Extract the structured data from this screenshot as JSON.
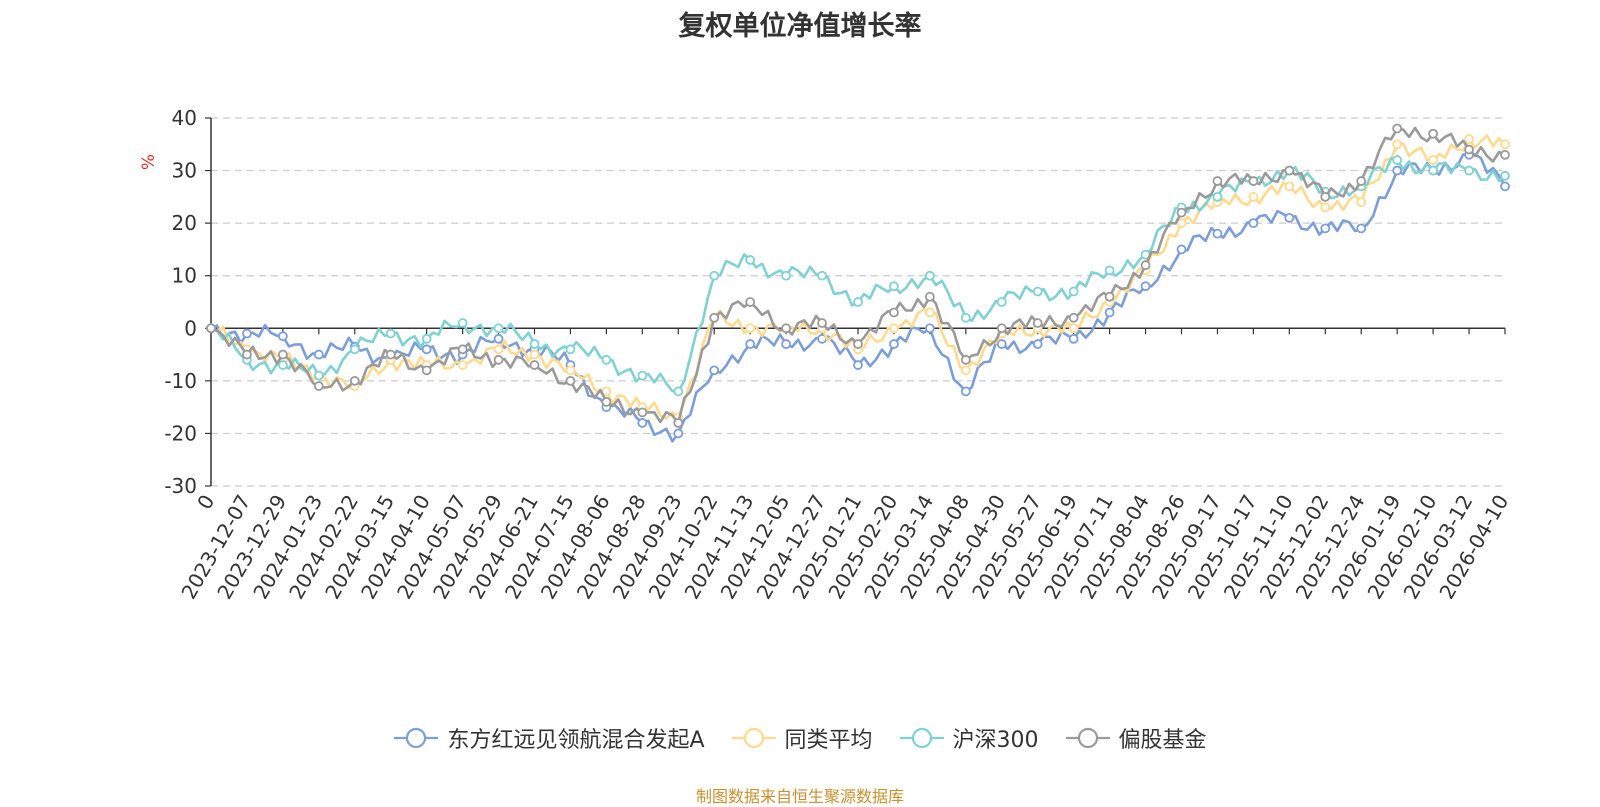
{
  "chart_data": {
    "type": "line",
    "title": "复权单位净值增长率",
    "ylabel": "%",
    "ylim": [
      -30,
      40
    ],
    "yticks": [
      -30,
      -20,
      -10,
      0,
      10,
      20,
      30,
      40
    ],
    "grid": true,
    "legend_position": "bottom",
    "xtick_labels": [
      "0",
      "2023-12-07",
      "2023-12-29",
      "2024-01-23",
      "2024-02-22",
      "2024-03-15",
      "2024-04-10",
      "2024-05-07",
      "2024-05-29",
      "2024-06-21",
      "2024-07-15",
      "2024-08-06",
      "2024-08-28",
      "2024-09-23",
      "2024-10-22",
      "2024-11-13",
      "2024-12-05",
      "2024-12-27",
      "2025-01-21",
      "2025-02-20",
      "2025-03-14",
      "2025-04-08",
      "2025-04-30",
      "2025-05-27",
      "2025-06-19",
      "2025-07-11",
      "2025-08-04",
      "2025-08-26",
      "2025-09-17",
      "2025-10-17",
      "2025-11-10",
      "2025-12-02",
      "2025-12-24",
      "2026-01-19",
      "2026-02-10",
      "2026-03-12",
      "2026-04-10"
    ],
    "series": [
      {
        "name": "东方红远见领航混合发起A",
        "color": "#7b9ed8",
        "values": [
          0,
          -1,
          -1.5,
          -5,
          -3.5,
          -6,
          -4,
          -5,
          -2,
          -4,
          -7,
          -15,
          -18,
          -20,
          -8,
          -3,
          -3,
          -2,
          -7,
          -3,
          0,
          -12,
          -3,
          -3,
          -2,
          3,
          8,
          15,
          18,
          20,
          21,
          19,
          19,
          30,
          30,
          33,
          27
        ]
      },
      {
        "name": "同类平均",
        "color": "#ffd98e",
        "values": [
          0,
          -4,
          -6,
          -9,
          -11,
          -6,
          -7,
          -7,
          -4,
          -5,
          -8,
          -12,
          -15,
          -17,
          2,
          0,
          0,
          0,
          -4,
          0,
          3,
          -8,
          -1,
          0,
          0,
          5,
          11,
          20,
          24,
          25,
          27,
          23,
          24,
          35,
          32,
          36,
          35
        ]
      },
      {
        "name": "沪深300",
        "color": "#7fd1d2",
        "values": [
          0,
          -6,
          -7,
          -9,
          -4,
          -1,
          -2,
          1,
          0,
          -3,
          -4,
          -6,
          -9,
          -12,
          10,
          13,
          10,
          10,
          5,
          8,
          10,
          2,
          5,
          7,
          7,
          11,
          14,
          23,
          25,
          28,
          30,
          26,
          27,
          32,
          30,
          30,
          29
        ]
      },
      {
        "name": "偏股基金",
        "color": "#9a9a9a",
        "values": [
          0,
          -5,
          -5,
          -11,
          -10,
          -5,
          -8,
          -4,
          -6,
          -7,
          -10,
          -14,
          -16,
          -18,
          2,
          5,
          0,
          1,
          -3,
          3,
          6,
          -6,
          0,
          1,
          2,
          6,
          12,
          22,
          28,
          28,
          30,
          25,
          28,
          38,
          37,
          34,
          33
        ]
      }
    ]
  },
  "footer": {
    "source_note": "制图数据来自恒生聚源数据库"
  }
}
